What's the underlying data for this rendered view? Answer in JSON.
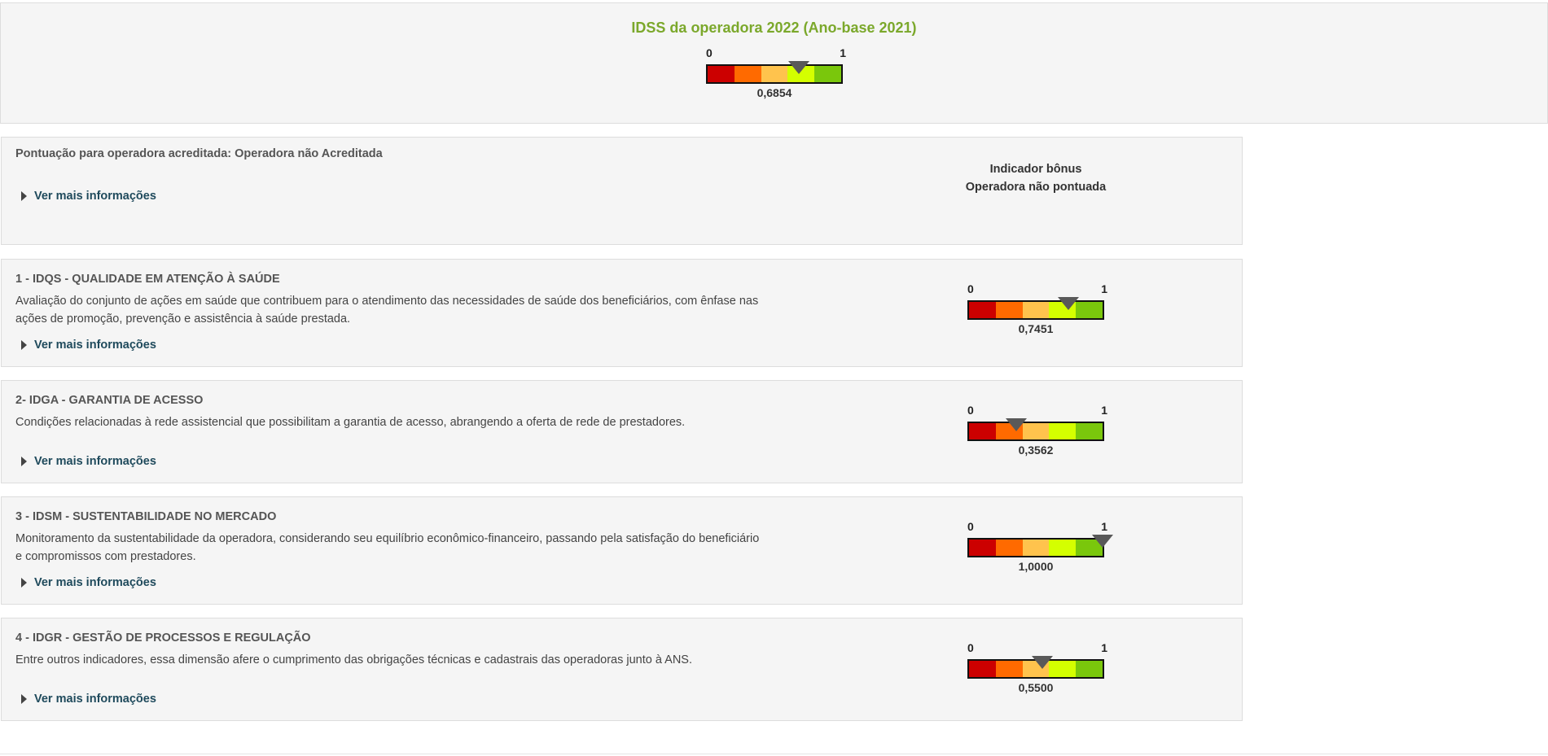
{
  "header": {
    "title": "IDSS da operadora 2022 (Ano-base 2021)",
    "gauge": {
      "min_label": "0",
      "max_label": "1",
      "value": 0.6854,
      "value_label": "0,6854"
    }
  },
  "gauge_colors": [
    "#cc0000",
    "#ff6a00",
    "#ffc34d",
    "#d4ff00",
    "#7ac70c"
  ],
  "accreditation": {
    "label": "Pontuação para operadora acreditada: Operadora não Acreditada",
    "more_link": "Ver mais informações",
    "bonus_title": "Indicador bônus",
    "bonus_value": "Operadora não pontuada"
  },
  "dimensions": [
    {
      "title": "1 - IDQS - QUALIDADE EM ATENÇÃO À SAÚDE",
      "description_lines": [
        "Avaliação do conjunto de ações em saúde que contribuem para o atendimento das necessidades de saúde dos beneficiários, com ênfase nas",
        "ações de promoção, prevenção e assistência à saúde prestada."
      ],
      "more_link": "Ver mais informações",
      "gauge": {
        "min_label": "0",
        "max_label": "1",
        "value": 0.7451,
        "value_label": "0,7451"
      }
    },
    {
      "title": "2- IDGA - GARANTIA DE ACESSO",
      "description_lines": [
        "Condições relacionadas à rede assistencial que possibilitam a garantia de acesso, abrangendo a oferta de rede de prestadores."
      ],
      "more_link": "Ver mais informações",
      "gauge": {
        "min_label": "0",
        "max_label": "1",
        "value": 0.3562,
        "value_label": "0,3562"
      }
    },
    {
      "title": "3 - IDSM - SUSTENTABILIDADE NO MERCADO",
      "description_lines": [
        "Monitoramento da sustentabilidade da operadora, considerando seu equilíbrio econômico-financeiro, passando pela satisfação do beneficiário",
        "e compromissos com prestadores."
      ],
      "more_link": "Ver mais informações",
      "gauge": {
        "min_label": "0",
        "max_label": "1",
        "value": 1.0,
        "value_label": "1,0000"
      }
    },
    {
      "title": "4 - IDGR - GESTÃO DE PROCESSOS E REGULAÇÃO",
      "description_lines": [
        "Entre outros indicadores, essa dimensão afere o cumprimento das obrigações técnicas e cadastrais das operadoras junto à ANS."
      ],
      "more_link": "Ver mais informações",
      "gauge": {
        "min_label": "0",
        "max_label": "1",
        "value": 0.55,
        "value_label": "0,5500"
      }
    }
  ]
}
